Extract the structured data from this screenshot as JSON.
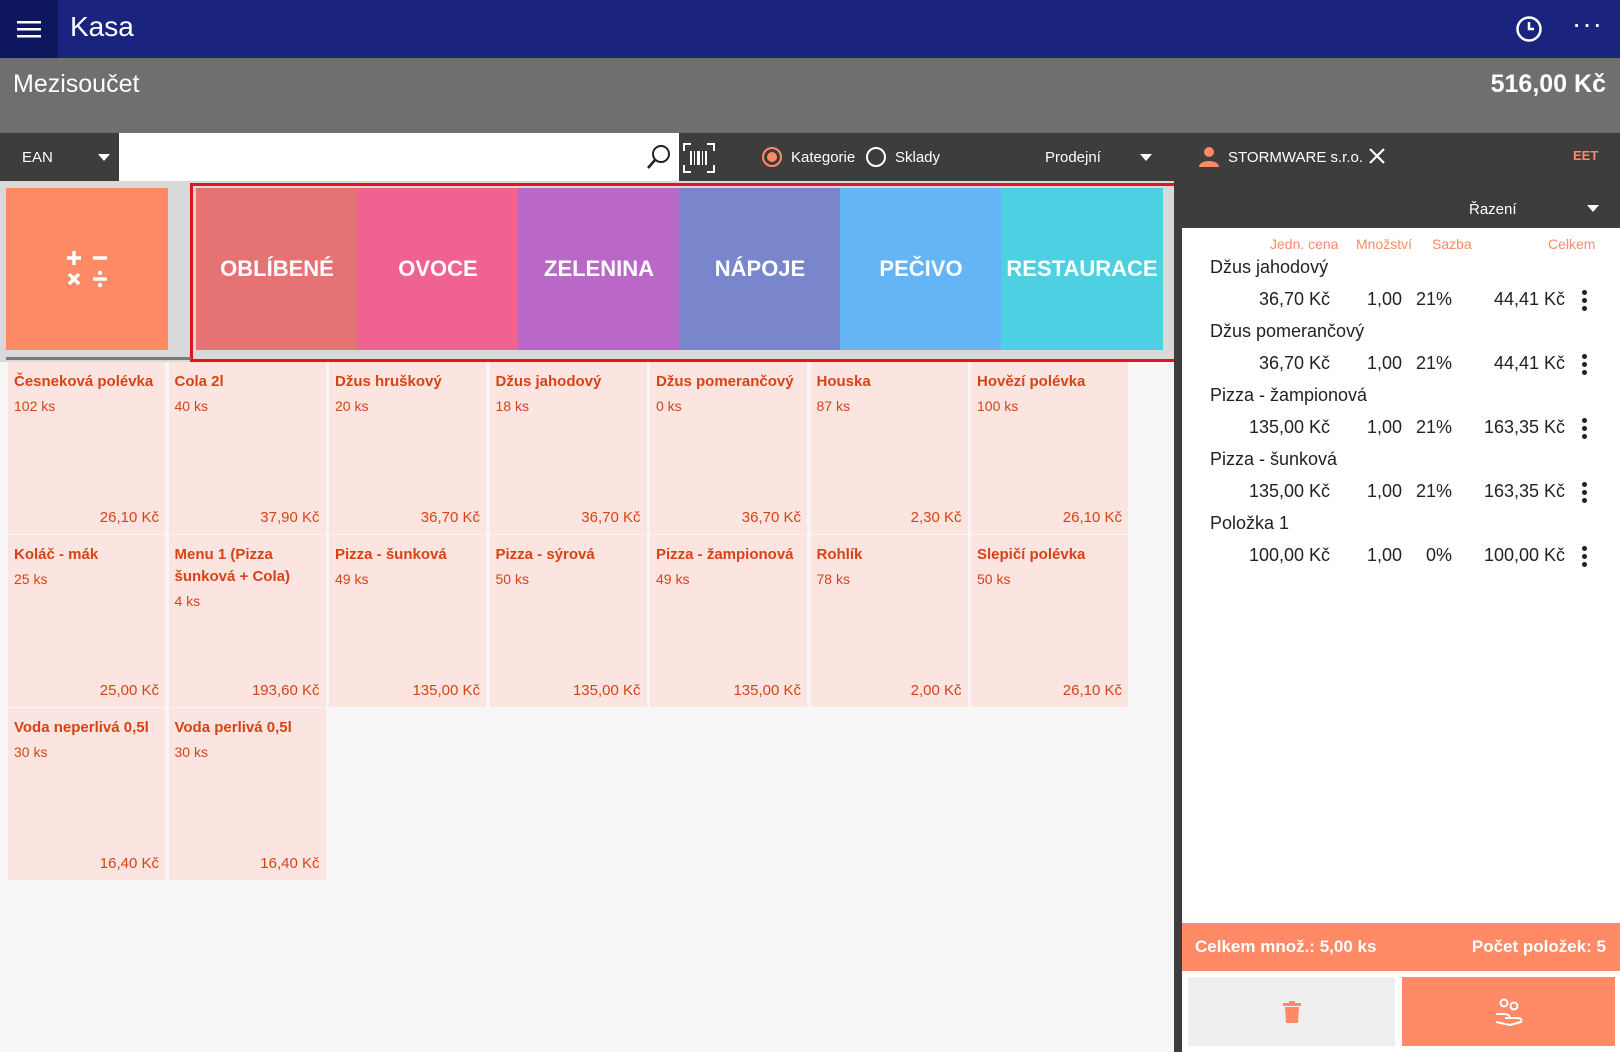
{
  "app": {
    "title": "Kasa",
    "more_label": "···"
  },
  "header": {
    "subtotal_label": "Mezisoučet",
    "subtotal_value": "516,00 Kč"
  },
  "toolbar": {
    "code_type": "EAN",
    "search_value": "",
    "search_placeholder": "",
    "radio_categories": "Kategorie",
    "radio_warehouses": "Sklady",
    "selected_radio": "Kategorie",
    "price_type": "Prodejní",
    "customer": "STORMWARE s.r.o.",
    "eet_label": "EET"
  },
  "categories": [
    {
      "label": "OBLÍBENÉ",
      "color": "#e57373"
    },
    {
      "label": "OVOCE",
      "color": "#f06292"
    },
    {
      "label": "ZELENINA",
      "color": "#ba68c8"
    },
    {
      "label": "NÁPOJE",
      "color": "#7986cb"
    },
    {
      "label": "PEČIVO",
      "color": "#64b5f6"
    },
    {
      "label": "RESTAURACE",
      "color": "#4dd0e1"
    }
  ],
  "products": [
    {
      "name": "Česneková polévka",
      "stock": "102 ks",
      "price": "26,10 Kč"
    },
    {
      "name": "Cola 2l",
      "stock": "40 ks",
      "price": "37,90 Kč"
    },
    {
      "name": "Džus hruškový",
      "stock": "20 ks",
      "price": "36,70 Kč"
    },
    {
      "name": "Džus jahodový",
      "stock": "18 ks",
      "price": "36,70 Kč"
    },
    {
      "name": "Džus pomerančový",
      "stock": "0 ks",
      "price": "36,70 Kč"
    },
    {
      "name": "Houska",
      "stock": "87 ks",
      "price": "2,30 Kč"
    },
    {
      "name": "Hovězí polévka",
      "stock": "100 ks",
      "price": "26,10 Kč"
    },
    {
      "name": "Koláč - mák",
      "stock": "25 ks",
      "price": "25,00 Kč"
    },
    {
      "name": "Menu 1 (Pizza šunková + Cola)",
      "stock": "4 ks",
      "price": "193,60 Kč"
    },
    {
      "name": "Pizza - šunková",
      "stock": "49 ks",
      "price": "135,00 Kč"
    },
    {
      "name": "Pizza - sýrová",
      "stock": "50 ks",
      "price": "135,00 Kč"
    },
    {
      "name": "Pizza - žampionová",
      "stock": "49 ks",
      "price": "135,00 Kč"
    },
    {
      "name": "Rohlík",
      "stock": "78 ks",
      "price": "2,00 Kč"
    },
    {
      "name": "Slepičí polévka",
      "stock": "50 ks",
      "price": "26,10 Kč"
    },
    {
      "name": "Voda neperlivá 0,5l",
      "stock": "30 ks",
      "price": "16,40 Kč"
    },
    {
      "name": "Voda perlivá 0,5l",
      "stock": "30 ks",
      "price": "16,40 Kč"
    }
  ],
  "receipt": {
    "sort_label": "Řazení",
    "columns": {
      "unit_price": "Jedn. cena",
      "quantity": "Množství",
      "rate": "Sazba",
      "total": "Celkem"
    },
    "items": [
      {
        "name": "Džus jahodový",
        "unit_price": "36,70 Kč",
        "quantity": "1,00",
        "rate": "21%",
        "total": "44,41 Kč"
      },
      {
        "name": "Džus pomerančový",
        "unit_price": "36,70 Kč",
        "quantity": "1,00",
        "rate": "21%",
        "total": "44,41 Kč"
      },
      {
        "name": "Pizza - žampionová",
        "unit_price": "135,00 Kč",
        "quantity": "1,00",
        "rate": "21%",
        "total": "163,35 Kč"
      },
      {
        "name": "Pizza - šunková",
        "unit_price": "135,00 Kč",
        "quantity": "1,00",
        "rate": "21%",
        "total": "163,35 Kč"
      },
      {
        "name": "Položka 1",
        "unit_price": "100,00 Kč",
        "quantity": "1,00",
        "rate": "0%",
        "total": "100,00 Kč"
      }
    ],
    "total_qty": "Celkem množ.: 5,00 ks",
    "item_count": "Počet položek: 5"
  },
  "colors": {
    "topbar": "#1a237e",
    "accent": "#ff8a65",
    "tile_bg": "#fce4e0",
    "tile_text": "#d84315",
    "highlight_frame": "#e8121f"
  }
}
